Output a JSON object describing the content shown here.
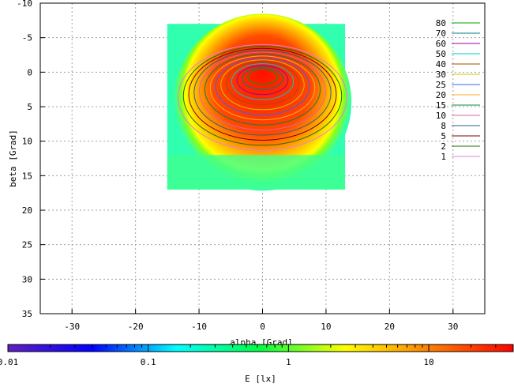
{
  "chart_data": {
    "type": "heatmap",
    "title": "",
    "xlabel": "alpha [Grad]",
    "ylabel": "beta [Grad]",
    "xlim": [
      -35,
      35
    ],
    "ylim": [
      35,
      -10
    ],
    "x_axis_inverted": false,
    "y_axis_inverted": true,
    "x_ticks": [
      "-30",
      "-20",
      "-10",
      "0",
      "10",
      "20",
      "30"
    ],
    "x_tick_values": [
      -30,
      -20,
      -10,
      0,
      10,
      20,
      30
    ],
    "y_ticks": [
      "-10",
      "-5",
      "0",
      "5",
      "10",
      "15",
      "20",
      "25",
      "30",
      "35"
    ],
    "y_tick_values": [
      -10,
      -5,
      0,
      5,
      10,
      15,
      20,
      25,
      30,
      35
    ],
    "grid": true,
    "data_extent": {
      "x": [
        -15,
        13
      ],
      "y": [
        -7,
        17
      ]
    },
    "peak": {
      "x": 0,
      "y": 0
    },
    "contour_levels": [
      {
        "label": "80",
        "color": "#00a000"
      },
      {
        "label": "70",
        "color": "#008080"
      },
      {
        "label": "60",
        "color": "#a000a0"
      },
      {
        "label": "50",
        "color": "#00c8c8"
      },
      {
        "label": "40",
        "color": "#a05000"
      },
      {
        "label": "30",
        "color": "#c8c800"
      },
      {
        "label": "25",
        "color": "#4060ff"
      },
      {
        "label": "20",
        "color": "#ffb020"
      },
      {
        "label": "15",
        "color": "#108040"
      },
      {
        "label": "10",
        "color": "#e060a0"
      },
      {
        "label": "8",
        "color": "#306080"
      },
      {
        "label": "5",
        "color": "#800000"
      },
      {
        "label": "2",
        "color": "#207000"
      },
      {
        "label": "1",
        "color": "#e080e0"
      }
    ],
    "legend_position": "top-right",
    "colorbar": {
      "label": "E [lx]",
      "scale": "log",
      "range": [
        0.01,
        40
      ],
      "tick_labels": [
        "0.01",
        "0.1",
        "1",
        "10"
      ],
      "tick_values": [
        0.01,
        0.1,
        1,
        10
      ],
      "colors": [
        "#6020c0",
        "#0000ff",
        "#00ffff",
        "#00ff40",
        "#ffff00",
        "#ff8000",
        "#ff0000"
      ]
    }
  }
}
